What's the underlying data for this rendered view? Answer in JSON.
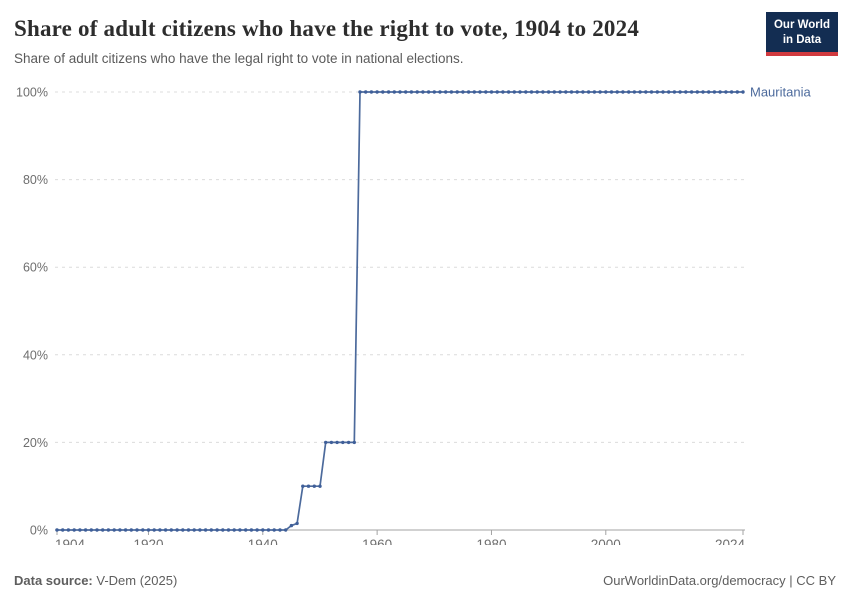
{
  "header": {
    "title": "Share of adult citizens who have the right to vote, 1904 to 2024",
    "subtitle": "Share of adult citizens who have the legal right to vote in national elections.",
    "logo": {
      "line1": "Our World",
      "line2": "in Data"
    }
  },
  "footer": {
    "source_label": "Data source:",
    "source_value": " V-Dem (2025)",
    "credit": "OurWorldinData.org/democracy | CC BY"
  },
  "colors": {
    "line": "#4c6a9c",
    "marker": "#3f5f99",
    "series_label": "#4c6a9c",
    "grid": "#dcdcdc",
    "axis": "#a3a3a3",
    "tick_text": "#6e6e6e",
    "logo_bg": "#132d52",
    "logo_bar": "#d13a3f"
  },
  "chart_data": {
    "type": "line",
    "title": "Share of adult citizens who have the right to vote, 1904 to 2024",
    "subtitle": "Share of adult citizens who have the legal right to vote in national elections.",
    "xlabel": "",
    "ylabel": "",
    "x_range": [
      1904,
      2024
    ],
    "y_range": [
      0,
      100
    ],
    "x_ticks": [
      1904,
      1920,
      1940,
      1960,
      1980,
      2000,
      2024
    ],
    "y_ticks": [
      0,
      20,
      40,
      60,
      80,
      100
    ],
    "y_tick_suffix": "%",
    "grid": true,
    "markers_every_year": true,
    "legend_position": "end-of-line",
    "series": [
      {
        "name": "Mauritania",
        "segments": [
          {
            "from": 1904,
            "to": 1944,
            "value": 0
          },
          {
            "from": 1945,
            "to": 1945,
            "value": 1
          },
          {
            "from": 1946,
            "to": 1946,
            "value": 1.5
          },
          {
            "from": 1947,
            "to": 1950,
            "value": 10
          },
          {
            "from": 1951,
            "to": 1956,
            "value": 20
          },
          {
            "from": 1957,
            "to": 2024,
            "value": 100
          }
        ]
      }
    ]
  }
}
